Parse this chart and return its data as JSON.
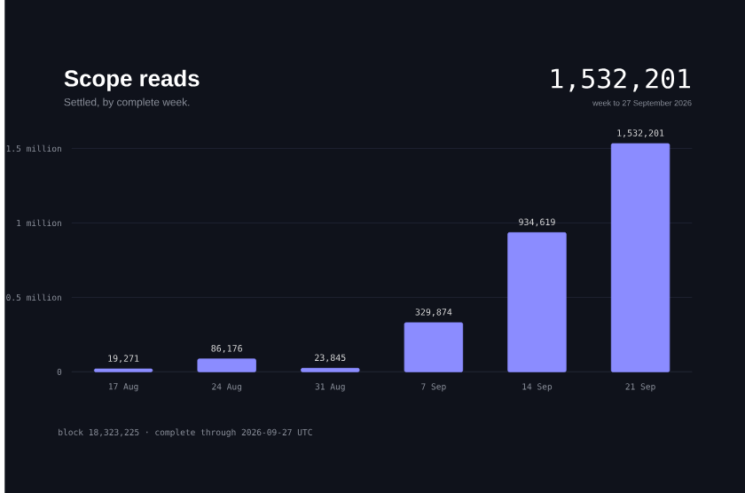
{
  "chart_data": {
    "type": "bar",
    "title": "Scope reads",
    "subtitle": "Settled, by complete week.",
    "categories": [
      "17 Aug",
      "24 Aug",
      "31 Aug",
      "7 Sep",
      "14 Sep",
      "21 Sep"
    ],
    "values": [
      19271,
      86176,
      23845,
      329874,
      934619,
      1532201
    ],
    "value_labels": [
      "19,271",
      "86,176",
      "23,845",
      "329,874",
      "934,619",
      "1,532,201"
    ],
    "color": "#8b8cff",
    "ylim": [
      0,
      1550000
    ],
    "yticks": [
      0,
      {
        "value": 500000,
        "label": "0.5 million"
      },
      {
        "value": 1000000,
        "label": "1 million"
      },
      {
        "value": 1500000,
        "label": "1.5 million"
      }
    ],
    "grid": "y",
    "annotations": [
      "1,532,201",
      "week to 27 September 2026",
      "block 18,323,225 · complete through 2026-09-27 UTC"
    ]
  }
}
